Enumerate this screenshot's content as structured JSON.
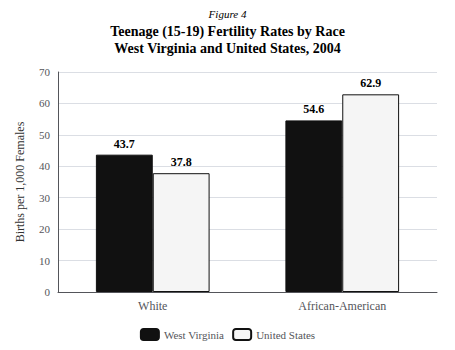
{
  "chart_data": {
    "type": "bar",
    "title": "Teenage (15-19) Fertility Rates by Race\nWest Virginia and United States, 2004",
    "subtitle": "Figure 4",
    "categories": [
      "White",
      "African-American"
    ],
    "series": [
      {
        "name": "West Virginia",
        "color": "#111111",
        "values": [
          43.7,
          54.6
        ]
      },
      {
        "name": "United States",
        "color": "#f5f5f5",
        "values": [
          37.8,
          62.9
        ]
      }
    ],
    "ylabel": "Births per 1,000 Females",
    "ylim": [
      0,
      70
    ],
    "yticks": [
      0,
      10,
      20,
      30,
      40,
      50,
      60,
      70
    ],
    "grid": true,
    "legend": "bottom",
    "data_labels": true
  }
}
